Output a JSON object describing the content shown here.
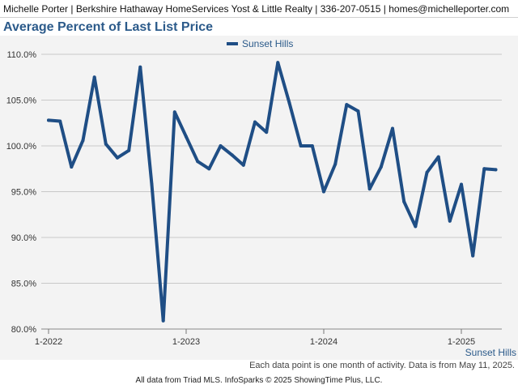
{
  "header": {
    "text": "Michelle Porter | Berkshire Hathaway HomeServices Yost & Little Realty | 336-207-0515 | homes@michelleporter.com"
  },
  "footnote": "Each data point is one month of activity. Data is from May 11, 2025.",
  "source": "All data from Triad MLS. InfoSparks © 2025 ShowingTime Plus, LLC.",
  "colors": {
    "series": "#1f4e85",
    "title": "#2b5a8a",
    "grid": "#c8c8c8",
    "plot_background": "#f3f3f3"
  },
  "chart_data": {
    "type": "line",
    "title": "Average Percent of Last List Price",
    "xlabel": "",
    "ylabel": "",
    "ylim": [
      80,
      110
    ],
    "y_ticks": [
      80,
      85,
      90,
      95,
      100,
      105,
      110
    ],
    "y_tick_labels": [
      "80.0%",
      "85.0%",
      "90.0%",
      "95.0%",
      "100.0%",
      "105.0%",
      "110.0%"
    ],
    "x_tick_labels": [
      "1-2022",
      "1-2023",
      "1-2024",
      "1-2025"
    ],
    "x_tick_months": [
      "2022-01",
      "2023-01",
      "2024-01",
      "2025-01"
    ],
    "x_range": [
      "2022-01",
      "2025-04"
    ],
    "grid": true,
    "legend_position": "top-center",
    "series_end_label": "Sunset Hills",
    "series": [
      {
        "name": "Sunset Hills",
        "x": [
          "2022-01",
          "2022-02",
          "2022-03",
          "2022-04",
          "2022-05",
          "2022-06",
          "2022-07",
          "2022-08",
          "2022-09",
          "2022-10",
          "2022-11",
          "2022-12",
          "2023-01",
          "2023-02",
          "2023-03",
          "2023-04",
          "2023-05",
          "2023-06",
          "2023-07",
          "2023-08",
          "2023-09",
          "2023-10",
          "2023-11",
          "2023-12",
          "2024-01",
          "2024-02",
          "2024-03",
          "2024-04",
          "2024-05",
          "2024-06",
          "2024-07",
          "2024-08",
          "2024-09",
          "2024-10",
          "2024-11",
          "2024-12",
          "2025-01",
          "2025-02",
          "2025-03",
          "2025-04"
        ],
        "values": [
          102.8,
          102.7,
          97.7,
          100.6,
          107.5,
          100.2,
          98.7,
          99.5,
          108.6,
          95.8,
          80.9,
          103.7,
          101.0,
          98.3,
          97.5,
          100.0,
          99.0,
          97.9,
          102.6,
          101.5,
          109.1,
          104.7,
          100.0,
          100.0,
          95.0,
          98.0,
          104.5,
          103.8,
          95.3,
          97.7,
          101.9,
          93.9,
          91.2,
          97.1,
          98.8,
          91.8,
          95.8,
          88.0,
          97.5,
          97.4
        ]
      }
    ]
  }
}
